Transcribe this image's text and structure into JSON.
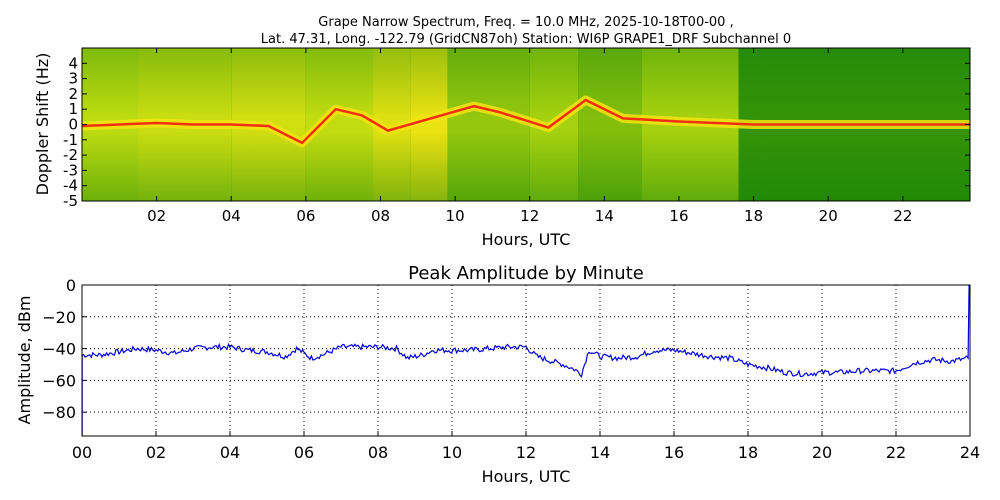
{
  "title_line1": "Grape Narrow Spectrum, Freq. = 10.0 MHz, 2025-10-18T00-00 ,",
  "title_line2": "Lat.  47.31, Long. -122.79 (GridCN87oh) Station: WI6P GRAPE1_DRF Subchannel 0",
  "chart_data": [
    {
      "type": "heatmap",
      "title": "",
      "xlabel": "Hours, UTC",
      "ylabel": "Doppler Shift (Hz)",
      "xlim": [
        0,
        23.8
      ],
      "ylim": [
        -5,
        5
      ],
      "xticks": [
        "02",
        "04",
        "06",
        "08",
        "10",
        "12",
        "14",
        "16",
        "18",
        "20",
        "22"
      ],
      "yticks": [
        "4",
        "3",
        "2",
        "1",
        "0",
        "-1",
        "-2",
        "-3",
        "-4",
        "-5"
      ],
      "colors": {
        "low": "#0b7d06",
        "mid": "#b6da10",
        "high": "#f4e312",
        "peak": "#f03010"
      },
      "background_hour_bands": [
        {
          "start": 0.0,
          "end": 1.5,
          "level": 0.55
        },
        {
          "start": 1.5,
          "end": 4.0,
          "level": 0.65
        },
        {
          "start": 4.0,
          "end": 6.0,
          "level": 0.72
        },
        {
          "start": 6.0,
          "end": 7.8,
          "level": 0.6
        },
        {
          "start": 7.8,
          "end": 8.8,
          "level": 0.82
        },
        {
          "start": 8.8,
          "end": 9.8,
          "level": 0.92
        },
        {
          "start": 9.8,
          "end": 12.0,
          "level": 0.4
        },
        {
          "start": 12.0,
          "end": 13.3,
          "level": 0.45
        },
        {
          "start": 13.3,
          "end": 15.0,
          "level": 0.35
        },
        {
          "start": 15.0,
          "end": 17.6,
          "level": 0.45
        },
        {
          "start": 17.6,
          "end": 23.8,
          "level": 0.12
        }
      ],
      "doppler_trace": [
        {
          "x": 0,
          "y": -0.1
        },
        {
          "x": 1,
          "y": 0.0
        },
        {
          "x": 2,
          "y": 0.1
        },
        {
          "x": 3,
          "y": 0.0
        },
        {
          "x": 4,
          "y": 0.0
        },
        {
          "x": 5,
          "y": -0.1
        },
        {
          "x": 5.9,
          "y": -1.2
        },
        {
          "x": 6.8,
          "y": 1.0
        },
        {
          "x": 7.5,
          "y": 0.6
        },
        {
          "x": 8.2,
          "y": -0.4
        },
        {
          "x": 10.5,
          "y": 1.2
        },
        {
          "x": 11.2,
          "y": 0.8
        },
        {
          "x": 12.5,
          "y": -0.2
        },
        {
          "x": 13.5,
          "y": 1.6
        },
        {
          "x": 14.5,
          "y": 0.4
        },
        {
          "x": 16,
          "y": 0.2
        },
        {
          "x": 18,
          "y": 0.0
        },
        {
          "x": 20,
          "y": 0.0
        },
        {
          "x": 23.8,
          "y": 0.0
        }
      ]
    },
    {
      "type": "line",
      "title": "Peak Amplitude by Minute",
      "xlabel": "Hours, UTC",
      "ylabel": "Amplitude, dBm",
      "xlim": [
        0,
        24
      ],
      "ylim": [
        -95,
        0
      ],
      "grid": true,
      "xticks": [
        "00",
        "02",
        "04",
        "06",
        "08",
        "10",
        "12",
        "14",
        "16",
        "18",
        "20",
        "22",
        "24"
      ],
      "yticks": [
        "0",
        "−20",
        "−40",
        "−60",
        "−80"
      ],
      "line_color": "#0000dd",
      "series": [
        {
          "values": [
            {
              "x": 0.0,
              "y": -44
            },
            {
              "x": 0.5,
              "y": -44
            },
            {
              "x": 1.0,
              "y": -42
            },
            {
              "x": 1.5,
              "y": -40
            },
            {
              "x": 2.0,
              "y": -41
            },
            {
              "x": 2.5,
              "y": -43
            },
            {
              "x": 3.0,
              "y": -40
            },
            {
              "x": 3.5,
              "y": -39
            },
            {
              "x": 4.0,
              "y": -39
            },
            {
              "x": 4.5,
              "y": -41
            },
            {
              "x": 5.0,
              "y": -42
            },
            {
              "x": 5.5,
              "y": -45
            },
            {
              "x": 5.8,
              "y": -40
            },
            {
              "x": 6.2,
              "y": -46
            },
            {
              "x": 6.5,
              "y": -44
            },
            {
              "x": 7.0,
              "y": -39
            },
            {
              "x": 7.5,
              "y": -39
            },
            {
              "x": 8.0,
              "y": -39
            },
            {
              "x": 8.5,
              "y": -40
            },
            {
              "x": 8.8,
              "y": -46
            },
            {
              "x": 9.2,
              "y": -44
            },
            {
              "x": 9.5,
              "y": -41
            },
            {
              "x": 10.0,
              "y": -41
            },
            {
              "x": 10.5,
              "y": -41
            },
            {
              "x": 11.0,
              "y": -40
            },
            {
              "x": 11.5,
              "y": -39
            },
            {
              "x": 12.0,
              "y": -39
            },
            {
              "x": 12.3,
              "y": -45
            },
            {
              "x": 12.7,
              "y": -48
            },
            {
              "x": 13.0,
              "y": -50
            },
            {
              "x": 13.3,
              "y": -53
            },
            {
              "x": 13.5,
              "y": -56
            },
            {
              "x": 13.7,
              "y": -41
            },
            {
              "x": 14.0,
              "y": -45
            },
            {
              "x": 14.5,
              "y": -46
            },
            {
              "x": 15.0,
              "y": -45
            },
            {
              "x": 15.5,
              "y": -41
            },
            {
              "x": 16.0,
              "y": -41
            },
            {
              "x": 16.5,
              "y": -43
            },
            {
              "x": 17.0,
              "y": -45
            },
            {
              "x": 17.5,
              "y": -46
            },
            {
              "x": 18.0,
              "y": -50
            },
            {
              "x": 18.5,
              "y": -52
            },
            {
              "x": 19.0,
              "y": -55
            },
            {
              "x": 19.5,
              "y": -56
            },
            {
              "x": 20.0,
              "y": -55
            },
            {
              "x": 20.5,
              "y": -55
            },
            {
              "x": 21.0,
              "y": -54
            },
            {
              "x": 21.5,
              "y": -54
            },
            {
              "x": 22.0,
              "y": -54
            },
            {
              "x": 22.5,
              "y": -49
            },
            {
              "x": 23.0,
              "y": -47
            },
            {
              "x": 23.5,
              "y": -48
            },
            {
              "x": 23.95,
              "y": -46
            },
            {
              "x": 24.0,
              "y": 0
            }
          ]
        }
      ]
    }
  ]
}
